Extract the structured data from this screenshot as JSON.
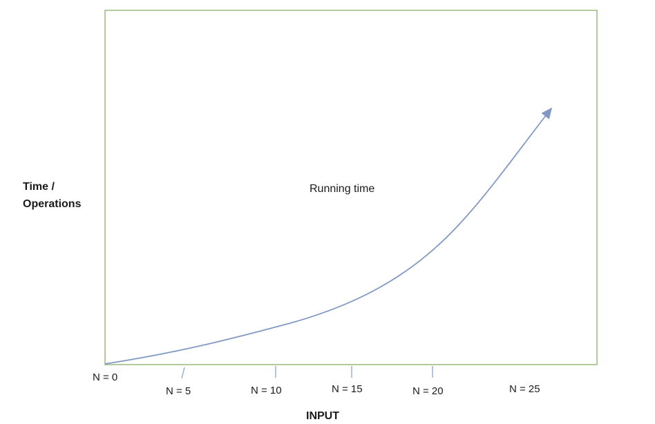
{
  "plot": {
    "curve_label": "Running time",
    "y_label_line1": "Time /",
    "y_label_line2": "Operations",
    "x_label": "INPUT",
    "ticks": [
      "N = 0",
      "N = 5",
      "N = 10",
      "N = 15",
      "N = 20",
      "N = 25"
    ]
  },
  "colors": {
    "frame": "#9fbf82",
    "curve": "#8098c4",
    "tick": "#8aa4cf",
    "text": "#1a1a1a"
  }
}
